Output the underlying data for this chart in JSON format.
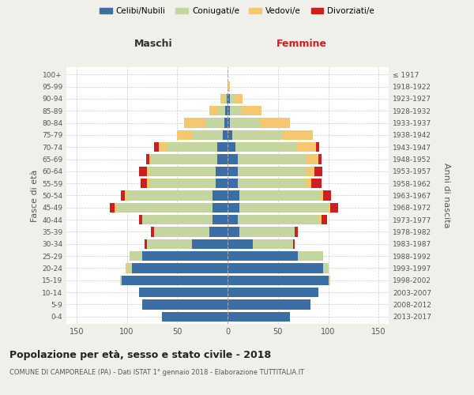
{
  "age_groups": [
    "0-4",
    "5-9",
    "10-14",
    "15-19",
    "20-24",
    "25-29",
    "30-34",
    "35-39",
    "40-44",
    "45-49",
    "50-54",
    "55-59",
    "60-64",
    "65-69",
    "70-74",
    "75-79",
    "80-84",
    "85-89",
    "90-94",
    "95-99",
    "100+"
  ],
  "birth_years": [
    "2013-2017",
    "2008-2012",
    "2003-2007",
    "1998-2002",
    "1993-1997",
    "1988-1992",
    "1983-1987",
    "1978-1982",
    "1973-1977",
    "1968-1972",
    "1963-1967",
    "1958-1962",
    "1953-1957",
    "1948-1952",
    "1943-1947",
    "1938-1942",
    "1933-1937",
    "1928-1932",
    "1923-1927",
    "1918-1922",
    "≤ 1917"
  ],
  "colors": {
    "celibi": "#3a6ea5",
    "coniugati": "#c5d5a0",
    "vedovi": "#f5c870",
    "divorziati": "#cc2020"
  },
  "maschi": {
    "celibi": [
      65,
      85,
      88,
      105,
      95,
      85,
      35,
      18,
      15,
      15,
      15,
      12,
      12,
      10,
      10,
      5,
      3,
      2,
      1,
      0,
      0
    ],
    "coniugati": [
      0,
      0,
      0,
      2,
      5,
      12,
      45,
      55,
      70,
      95,
      85,
      65,
      65,
      65,
      50,
      30,
      20,
      8,
      3,
      0,
      0
    ],
    "vedovi": [
      0,
      0,
      0,
      0,
      1,
      0,
      0,
      0,
      0,
      2,
      2,
      3,
      3,
      3,
      8,
      15,
      20,
      8,
      3,
      0,
      0
    ],
    "divorziati": [
      0,
      0,
      0,
      0,
      0,
      0,
      2,
      3,
      3,
      5,
      4,
      6,
      8,
      3,
      5,
      0,
      0,
      0,
      0,
      0,
      0
    ]
  },
  "femmine": {
    "celibi": [
      62,
      82,
      90,
      100,
      95,
      70,
      25,
      12,
      10,
      12,
      12,
      10,
      10,
      10,
      8,
      5,
      2,
      2,
      2,
      0,
      0
    ],
    "coniugati": [
      0,
      0,
      0,
      2,
      5,
      25,
      40,
      55,
      80,
      88,
      80,
      68,
      68,
      68,
      60,
      50,
      30,
      12,
      5,
      0,
      0
    ],
    "vedovi": [
      0,
      0,
      0,
      0,
      0,
      0,
      0,
      0,
      3,
      2,
      3,
      5,
      8,
      12,
      20,
      30,
      30,
      20,
      8,
      2,
      0
    ],
    "divorziati": [
      0,
      0,
      0,
      0,
      0,
      0,
      2,
      3,
      6,
      8,
      8,
      10,
      8,
      3,
      3,
      0,
      0,
      0,
      0,
      0,
      0
    ]
  },
  "xlim": 160,
  "title": "Popolazione per età, sesso e stato civile - 2018",
  "subtitle": "COMUNE DI CAMPOREALE (PA) - Dati ISTAT 1° gennaio 2018 - Elaborazione TUTTITALIA.IT",
  "ylabel_left": "Fasce di età",
  "ylabel_right": "Anni di nascita",
  "xlabel_left": "Maschi",
  "xlabel_right": "Femmine",
  "legend_labels": [
    "Celibi/Nubili",
    "Coniugati/e",
    "Vedovi/e",
    "Divorziati/e"
  ],
  "bg_color": "#f0f0eb",
  "plot_bg": "#ffffff"
}
